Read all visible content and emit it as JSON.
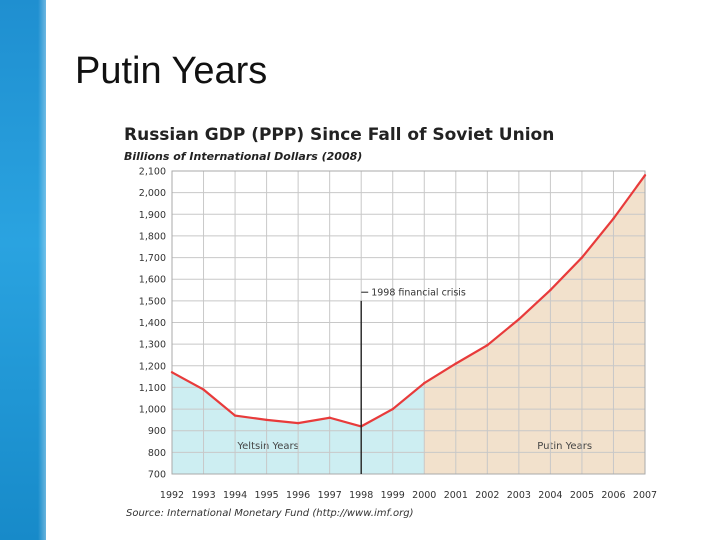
{
  "slide": {
    "title": "Putin Years"
  },
  "chart_data": {
    "type": "area",
    "title": "Russian GDP (PPP) Since Fall of Soviet Union",
    "subtitle": "Billions of International Dollars (2008)",
    "source": "Source: International Monetary Fund (http://www.imf.org)",
    "x": [
      1992,
      1993,
      1994,
      1995,
      1996,
      1997,
      1998,
      1999,
      2000,
      2001,
      2002,
      2003,
      2004,
      2005,
      2006,
      2007
    ],
    "series": [
      {
        "values": [
          1170,
          1090,
          970,
          950,
          935,
          960,
          920,
          1000,
          1120,
          1210,
          1295,
          1415,
          1550,
          1700,
          1880,
          2080
        ]
      }
    ],
    "ylim": [
      700,
      2100
    ],
    "yticks": [
      700,
      800,
      900,
      1000,
      1100,
      1200,
      1300,
      1400,
      1500,
      1600,
      1700,
      1800,
      1900,
      2000,
      2100
    ],
    "ytick_labels": [
      "700",
      "800",
      "900",
      "1,000",
      "1,100",
      "1,200",
      "1,300",
      "1,400",
      "1,500",
      "1,600",
      "1,700",
      "1,800",
      "1,900",
      "2,000",
      "2,100"
    ],
    "grid": true,
    "regions": [
      {
        "label": "Yeltsin Years",
        "from": 1992,
        "to": 2000,
        "color": "#cdeef2"
      },
      {
        "label": "Putin Years",
        "from": 2000,
        "to": 2007,
        "color": "#f2e1cc"
      }
    ],
    "annotation": {
      "label": "1998 financial crisis",
      "x": 1998
    },
    "line_color": "#e83b3b"
  }
}
